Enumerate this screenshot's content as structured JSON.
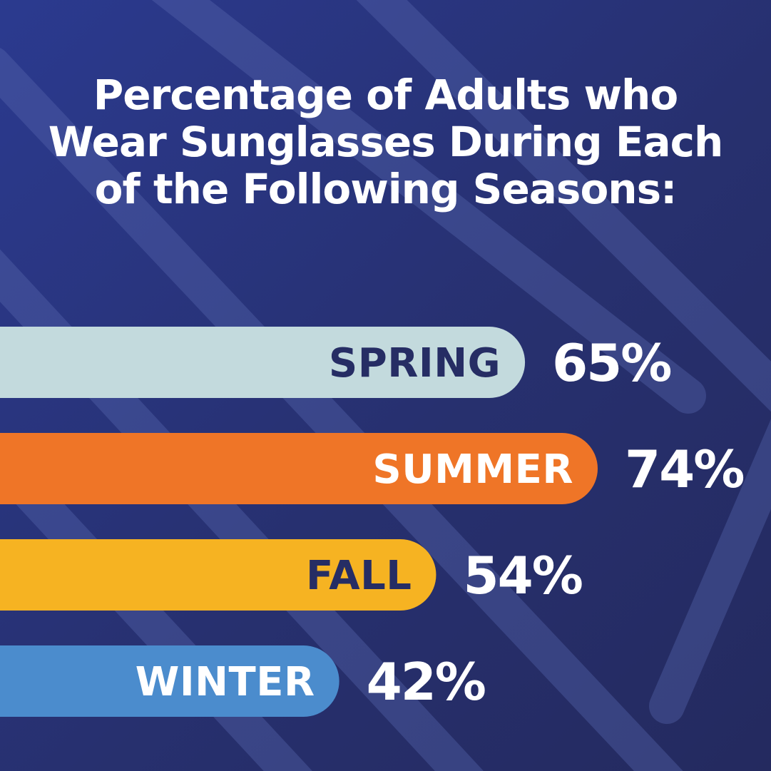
{
  "chart_data": {
    "type": "bar",
    "orientation": "horizontal",
    "title": "Percentage of Adults who Wear Sunglasses During Each of the Following Seasons:",
    "categories": [
      "SPRING",
      "SUMMER",
      "FALL",
      "WINTER"
    ],
    "values": [
      65,
      74,
      54,
      42
    ],
    "value_labels": [
      "65%",
      "74%",
      "54%",
      "42%"
    ],
    "unit": "%",
    "xlim": [
      0,
      100
    ],
    "grid": false,
    "legend": "none",
    "colors": {
      "background": "#283580",
      "stripes": "#5a6ab0",
      "bars": [
        "#c3dadd",
        "#ef7527",
        "#f6b322",
        "#4b8ccd"
      ],
      "bar_label_text": [
        "#262d64",
        "#ffffff",
        "#262d64",
        "#ffffff"
      ],
      "value_text": "#ffffff",
      "title_text": "#ffffff"
    }
  }
}
